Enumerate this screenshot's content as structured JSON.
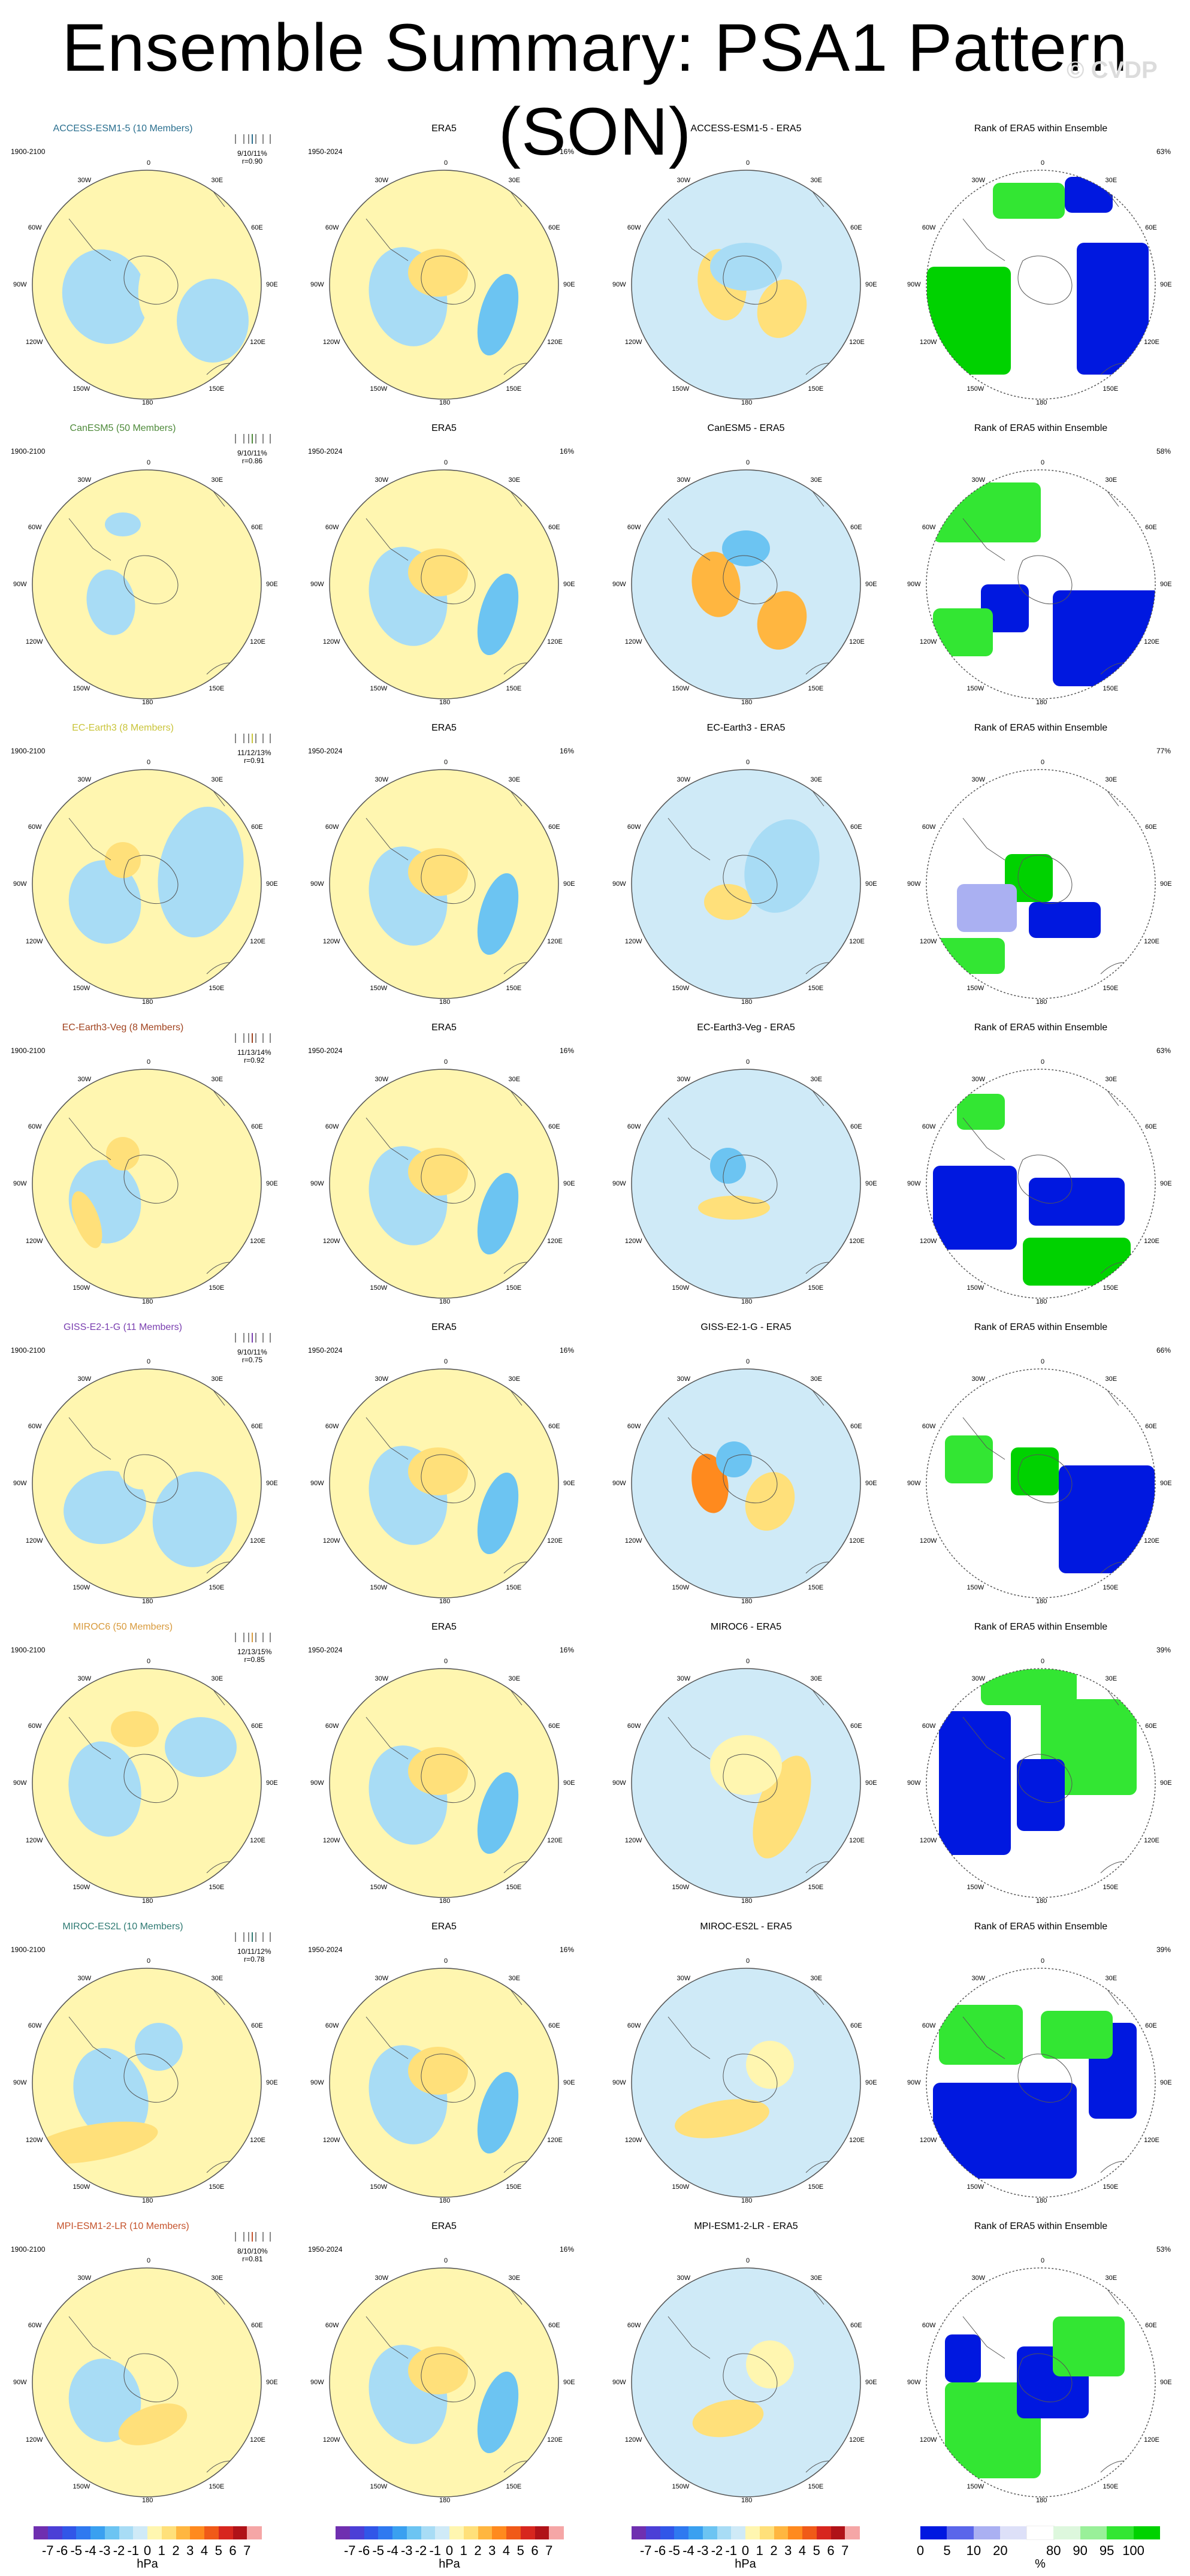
{
  "title": "Ensemble Summary: PSA1 Pattern (SON)",
  "watermark": "© CVDP",
  "col_headers": {
    "obs": "ERA5",
    "rank": "Rank of ERA5 within Ensemble"
  },
  "periods": {
    "model": "1900-2100",
    "obs": "1950-2024"
  },
  "obs_pct": "16%",
  "geo_labels": [
    "0",
    "30W",
    "30E",
    "60W",
    "60E",
    "90W",
    "90E",
    "120W",
    "120E",
    "150W",
    "150E",
    "180"
  ],
  "rows": [
    {
      "model": "ACCESS-ESM1-5 (10 Members)",
      "diff": "ACCESS-ESM1-5 - ERA5",
      "pct_model": "9/10/11%",
      "r": "r=0.90",
      "rank_pct": "63%",
      "color": "#2a6f8f"
    },
    {
      "model": "CanESM5 (50 Members)",
      "diff": "CanESM5 - ERA5",
      "pct_model": "9/10/11%",
      "r": "r=0.86",
      "rank_pct": "58%",
      "color": "#4e8a3a"
    },
    {
      "model": "EC-Earth3 (8 Members)",
      "diff": "EC-Earth3 - ERA5",
      "pct_model": "11/12/13%",
      "r": "r=0.91",
      "rank_pct": "77%",
      "color": "#c9c43a"
    },
    {
      "model": "EC-Earth3-Veg (8 Members)",
      "diff": "EC-Earth3-Veg - ERA5",
      "pct_model": "11/13/14%",
      "r": "r=0.92",
      "rank_pct": "63%",
      "color": "#a0421e"
    },
    {
      "model": "GISS-E2-1-G (11 Members)",
      "diff": "GISS-E2-1-G - ERA5",
      "pct_model": "9/10/11%",
      "r": "r=0.75",
      "rank_pct": "66%",
      "color": "#7a3fb0"
    },
    {
      "model": "MIROC6 (50 Members)",
      "diff": "MIROC6 - ERA5",
      "pct_model": "12/13/15%",
      "r": "r=0.85",
      "rank_pct": "39%",
      "color": "#d89a3c"
    },
    {
      "model": "MIROC-ES2L (10 Members)",
      "diff": "MIROC-ES2L - ERA5",
      "pct_model": "10/11/12%",
      "r": "r=0.78",
      "rank_pct": "39%",
      "color": "#2f7a73"
    },
    {
      "model": "MPI-ESM1-2-LR (10 Members)",
      "diff": "MPI-ESM1-2-LR - ERA5",
      "pct_model": "8/10/10%",
      "r": "r=0.81",
      "rank_pct": "53%",
      "color": "#c5532c"
    }
  ],
  "colorbars": {
    "hpa_ticks": [
      "-7",
      "-6",
      "-5",
      "-4",
      "-3",
      "-2",
      "-1",
      "0",
      "1",
      "2",
      "3",
      "4",
      "5",
      "6",
      "7"
    ],
    "hpa_unit": "hPa",
    "hpa_colors": [
      "#6f2fb0",
      "#4b3fd6",
      "#3156e8",
      "#2f79f0",
      "#3aa0f0",
      "#6cc4f2",
      "#a8dcf5",
      "#cfeaf7",
      "#fff6b0",
      "#ffe07a",
      "#ffb640",
      "#ff8a1e",
      "#f05a18",
      "#d7261e",
      "#b01218",
      "#f5a6a6"
    ],
    "rank_ticks": [
      "0",
      "5",
      "10",
      "20",
      "80",
      "90",
      "95",
      "100"
    ],
    "rank_unit": "%",
    "rank_colors": [
      "#0018e0",
      "#5a66ea",
      "#aab0f2",
      "#dde0f8",
      "#ffffff",
      "#ddf7dd",
      "#99f099",
      "#33e633",
      "#00d200"
    ]
  }
}
